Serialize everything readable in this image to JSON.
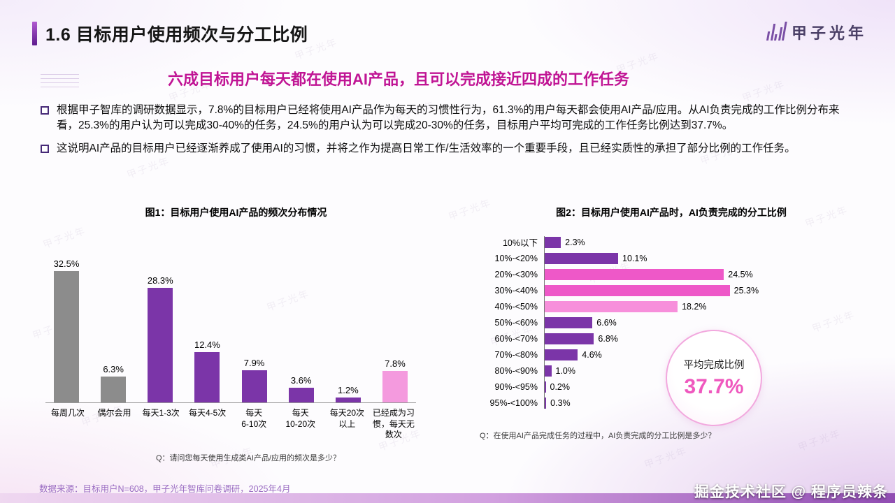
{
  "slide": {
    "title": "1.6 目标用户使用频次与分工比例",
    "headline": "六成目标用户每天都在使用AI产品，且可以完成接近四成的工作任务",
    "bullets": [
      "根据甲子智库的调研数据显示，7.8%的目标用户已经将使用AI产品作为每天的习惯性行为，61.3%的用户每天都会使用AI产品/应用。从AI负责完成的工作比例分布来看，25.3%的用户认为可以完成30-40%的任务，24.5%的用户认为可以完成20-30%的任务，目标用户平均可完成的工作任务比例达到37.7%。",
      "这说明AI产品的目标用户已经逐渐养成了使用AI的习惯，并将之作为提高日常工作/生活效率的一个重要手段，且已经实质性的承担了部分比例的工作任务。"
    ],
    "footer": "数据来源：目标用户N=608，甲子光年智库问卷调研，2025年4月",
    "bottom_watermark": "掘金技术社区 @ 程序员辣条",
    "logo_text": "甲子光年",
    "background_watermark_text": "甲子光年",
    "colors": {
      "accent_purple": "#7b35a8",
      "headline_pink": "#c01494",
      "bar_gray": "#8c8c8c",
      "bar_pink_light": "#f49ade",
      "bar_pink_bright": "#ee58c8"
    }
  },
  "chart_data": [
    {
      "type": "bar",
      "title": "图1：目标用户使用AI产品的频次分布情况",
      "categories": [
        "每周几次",
        "偶尔会用",
        "每天1-3次",
        "每天4-5次",
        "每天\n6-10次",
        "每天\n10-20次",
        "每天20次\n以上",
        "已经成为习\n惯，每天无\n数次"
      ],
      "values": [
        32.5,
        6.3,
        28.3,
        12.4,
        7.9,
        3.6,
        1.2,
        7.8
      ],
      "colors": [
        "#8c8c8c",
        "#8c8c8c",
        "#7b35a8",
        "#7b35a8",
        "#7b35a8",
        "#7b35a8",
        "#7b35a8",
        "#f49ade"
      ],
      "ylim": [
        0,
        35
      ],
      "grid": false,
      "question": "Q：请问您每天使用生成类AI产品/应用的频次是多少？"
    },
    {
      "type": "bar-horizontal",
      "title": "图2：目标用户使用AI产品时，AI负责完成的分工比例",
      "categories": [
        "10%以下",
        "10%-<20%",
        "20%-<30%",
        "30%-<40%",
        "40%-<50%",
        "50%-<60%",
        "60%-<70%",
        "70%-<80%",
        "80%-<90%",
        "90%-<95%",
        "95%-<100%"
      ],
      "values": [
        2.3,
        10.1,
        24.5,
        25.3,
        18.2,
        6.6,
        6.8,
        4.6,
        1.0,
        0.2,
        0.3
      ],
      "colors": [
        "#7b35a8",
        "#7b35a8",
        "#ee58c8",
        "#ee58c8",
        "#f78fdb",
        "#7b35a8",
        "#7b35a8",
        "#7b35a8",
        "#7b35a8",
        "#7b35a8",
        "#7b35a8"
      ],
      "xlim": [
        0,
        28
      ],
      "grid": false,
      "question": "Q：在使用AI产品完成任务的过程中，AI负责完成的分工比例是多少？",
      "average": {
        "label": "平均完成比例",
        "value": "37.7%"
      }
    }
  ]
}
